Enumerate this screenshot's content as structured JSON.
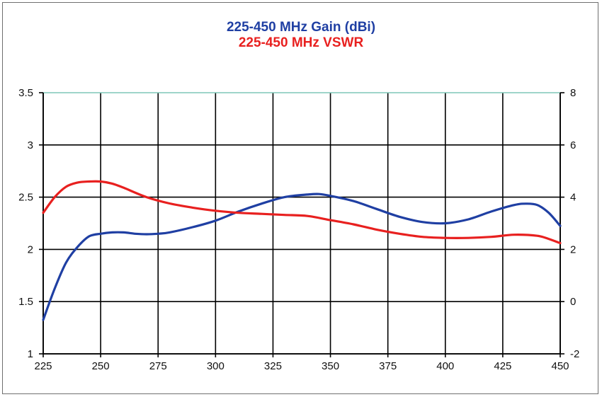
{
  "chart_data": {
    "type": "line",
    "title": "225-450 MHz Gain (dBi)",
    "subtitle": "225-450 MHz VSWR",
    "xlim": [
      225,
      450
    ],
    "x_ticks": [
      "225",
      "250",
      "275",
      "300",
      "325",
      "350",
      "375",
      "400",
      "425",
      "450"
    ],
    "left_axis": {
      "ylim": [
        1,
        3.5
      ],
      "ticks": [
        "1",
        "1.5",
        "2",
        "2.5",
        "3",
        "3.5"
      ]
    },
    "right_axis": {
      "ylim": [
        -2,
        8
      ],
      "ticks": [
        "-2",
        "0",
        "2",
        "4",
        "6",
        "8"
      ]
    },
    "grid": true,
    "series": [
      {
        "name": "225-450 MHz Gain (dBi)",
        "axis": "right",
        "color": "#1f3fa3",
        "x": [
          225,
          230,
          235,
          240,
          245,
          250,
          255,
          260,
          265,
          270,
          275,
          280,
          290,
          300,
          310,
          320,
          330,
          340,
          345,
          350,
          360,
          370,
          380,
          390,
          400,
          410,
          420,
          430,
          435,
          440,
          445,
          450
        ],
        "y": [
          -0.7,
          0.5,
          1.5,
          2.1,
          2.5,
          2.6,
          2.65,
          2.65,
          2.6,
          2.58,
          2.6,
          2.65,
          2.85,
          3.1,
          3.45,
          3.75,
          4.0,
          4.1,
          4.12,
          4.05,
          3.85,
          3.55,
          3.25,
          3.05,
          3.0,
          3.15,
          3.45,
          3.7,
          3.75,
          3.7,
          3.4,
          2.9
        ]
      },
      {
        "name": "225-450 MHz VSWR",
        "axis": "left",
        "color": "#e8201f",
        "x": [
          225,
          230,
          235,
          240,
          245,
          250,
          255,
          260,
          270,
          280,
          290,
          300,
          310,
          320,
          330,
          340,
          350,
          360,
          370,
          380,
          390,
          400,
          410,
          420,
          430,
          440,
          445,
          450
        ],
        "y": [
          2.35,
          2.5,
          2.6,
          2.64,
          2.65,
          2.65,
          2.63,
          2.59,
          2.5,
          2.44,
          2.4,
          2.37,
          2.35,
          2.34,
          2.33,
          2.32,
          2.28,
          2.24,
          2.19,
          2.15,
          2.12,
          2.11,
          2.11,
          2.12,
          2.14,
          2.13,
          2.1,
          2.06
        ]
      }
    ]
  }
}
